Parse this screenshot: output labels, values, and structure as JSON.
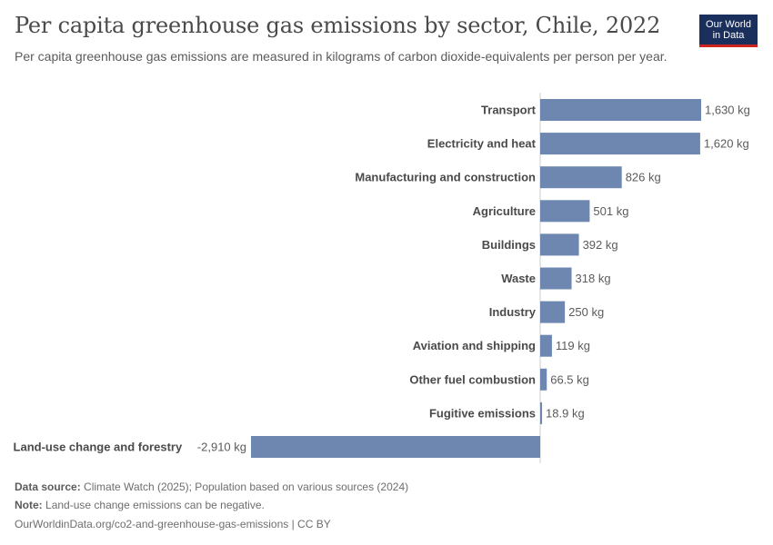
{
  "header": {
    "title": "Per capita greenhouse gas emissions by sector, Chile, 2022",
    "subtitle": "Per capita greenhouse gas emissions are measured in kilograms of carbon dioxide-equivalents per person per year.",
    "logo_line1": "Our World",
    "logo_line2": "in Data"
  },
  "chart_data": {
    "type": "bar",
    "orientation": "horizontal",
    "title": "Per capita greenhouse gas emissions by sector, Chile, 2022",
    "unit": "kg",
    "categories": [
      "Transport",
      "Electricity and heat",
      "Manufacturing and construction",
      "Agriculture",
      "Buildings",
      "Waste",
      "Industry",
      "Aviation and shipping",
      "Other fuel combustion",
      "Fugitive emissions",
      "Land-use change and forestry"
    ],
    "values": [
      1630,
      1620,
      826,
      501,
      392,
      318,
      250,
      119,
      66.5,
      18.9,
      -2910
    ],
    "value_labels": [
      "1,630 kg",
      "1,620 kg",
      "826 kg",
      "501 kg",
      "392 kg",
      "318 kg",
      "250 kg",
      "119 kg",
      "66.5 kg",
      "18.9 kg",
      "-2,910 kg"
    ],
    "xlim": [
      -2910,
      1630
    ],
    "colors": {
      "bar": "#6d87b0",
      "label": "#4a4a4a",
      "value": "#5b5b5b",
      "axis": "#cccccc"
    }
  },
  "footer": {
    "source_label": "Data source:",
    "source_text": "Climate Watch (2025); Population based on various sources (2024)",
    "note_label": "Note:",
    "note_text": "Land-use change emissions can be negative.",
    "url_text": "OurWorldinData.org/co2-and-greenhouse-gas-emissions | CC BY"
  }
}
